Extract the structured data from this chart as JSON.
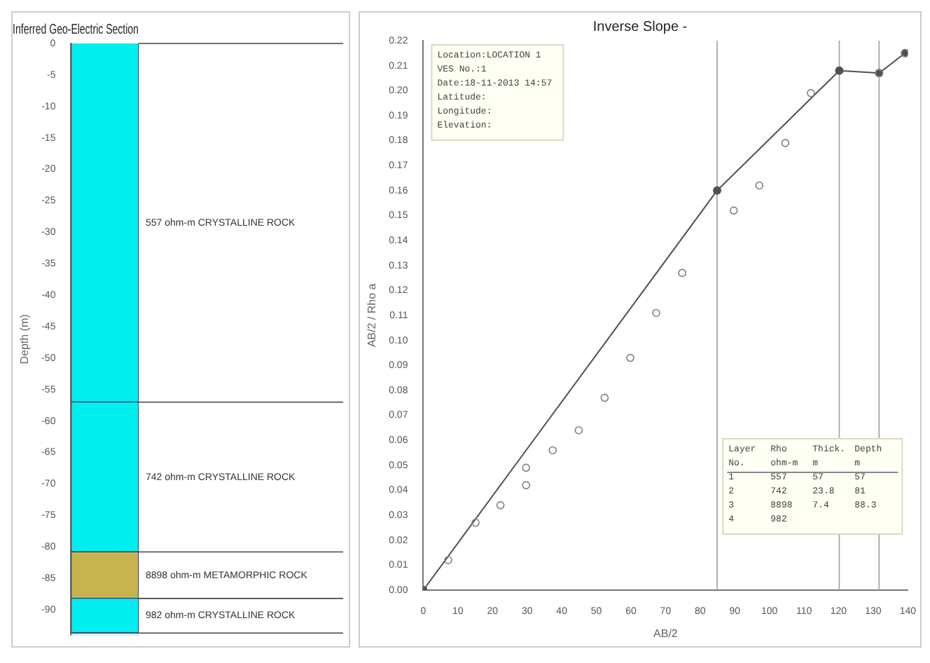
{
  "chart_data": [
    {
      "type": "bar",
      "stacked": true,
      "title": "Inferred Geo-Electric Section",
      "ylabel": "Depth (m)",
      "categories": [
        null
      ],
      "series": [
        {
          "color": "#00f0f0",
          "values": [
            -57
          ]
        },
        {
          "color": "#00f0f0",
          "values": [
            -23.8
          ]
        },
        {
          "color": "#c8b44f",
          "values": [
            -7.4
          ]
        },
        {
          "color": "#00f0f0",
          "values": [
            -5.5
          ]
        }
      ],
      "ylim": [
        -94,
        0
      ],
      "yticks": [
        0,
        -5,
        -10,
        -15,
        -20,
        -25,
        -30,
        -35,
        -40,
        -45,
        -50,
        -55,
        -60,
        -65,
        -70,
        -75,
        -80,
        -85,
        -90
      ],
      "annotations": [
        "557 ohm-m CRYSTALLINE ROCK",
        "742 ohm-m CRYSTALLINE ROCK",
        "8898 ohm-m METAMORPHIC ROCK",
        "982 ohm-m CRYSTALLINE ROCK"
      ]
    },
    {
      "type": "scatter",
      "title": "Inverse Slope -",
      "xlabel": "AB/2",
      "ylabel": "AB/2 / Rho a",
      "marker": "circle",
      "legend": false,
      "xlim": [
        0,
        140
      ],
      "xticks": [
        0,
        10,
        20,
        30,
        40,
        50,
        60,
        70,
        80,
        90,
        100,
        110,
        120,
        130,
        140
      ],
      "ylim": [
        0,
        0.22
      ],
      "yticks": [
        {
          "value": 0,
          "label": "0.00"
        },
        0.01,
        0.02,
        0.03,
        0.04,
        0.05,
        0.06,
        0.07,
        0.08,
        0.09,
        {
          "value": 0.1,
          "label": "0.10"
        },
        0.11,
        0.12,
        0.13,
        0.14,
        0.15,
        0.16,
        0.17,
        0.18,
        0.19,
        {
          "value": 0.2,
          "label": "0.20"
        },
        0.21,
        0.22
      ],
      "series": [
        {
          "type": "scatter",
          "color": "#808080",
          "x": [
            7.2,
            15.1,
            22.3,
            29.7,
            29.7,
            37.4,
            44.9,
            52.4,
            59.8,
            67.3,
            74.8,
            89.7,
            97.1,
            104.6,
            112,
            131.7,
            139.2
          ],
          "values": [
            0.012,
            0.027,
            0.034,
            0.042,
            0.049,
            0.056,
            0.064,
            0.077,
            0.093,
            0.111,
            0.127,
            0.152,
            0.162,
            0.179,
            0.199,
            0.207,
            0.215
          ]
        },
        {
          "type": "line",
          "color": "#505050",
          "x": [
            0,
            84.9,
            120.2,
            131.7,
            139.2
          ],
          "values": [
            0,
            0.16,
            0.208,
            0.207,
            0.215
          ]
        }
      ],
      "ref_lines": [
        {
          "axis": "x",
          "value": 84.9,
          "color": "#a0a0a0"
        },
        {
          "axis": "x",
          "value": 120.2,
          "color": "#a0a0a0"
        },
        {
          "axis": "x",
          "value": 131.7,
          "color": "#a0a0a0"
        }
      ],
      "annotations": [
        "Location:LOCATION 1\nVES No.:1\nDate:18-11-2013 14:57\nLatitude:\nLongitude:\nElevation:",
        "Layer\tRho\tThick.\tDepth\nNo.\tohm-m\tm\tm\n1\t557\t57\t57\n2\t742\t23.8\t81\n3\t8898\t7.4\t88.3\n4\t982"
      ]
    }
  ]
}
